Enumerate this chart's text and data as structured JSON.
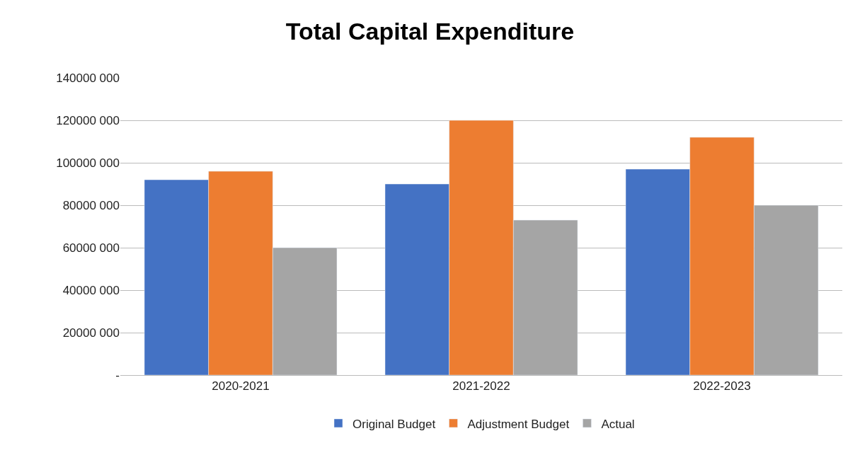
{
  "chart_data": {
    "type": "bar",
    "title": "Total Capital Expenditure",
    "categories": [
      "2020-2021",
      "2021-2022",
      "2022-2023"
    ],
    "series": [
      {
        "name": "Original Budget",
        "color": "#4472c4",
        "values": [
          92000000,
          90000000,
          97000000
        ]
      },
      {
        "name": "Adjustment Budget",
        "color": "#ed7d31",
        "values": [
          96000000,
          120000000,
          112000000
        ]
      },
      {
        "name": "Actual",
        "color": "#a5a5a5",
        "values": [
          60000000,
          73000000,
          80000000
        ]
      }
    ],
    "ylim": [
      0,
      140000000
    ],
    "yticks": [
      {
        "value": 0,
        "label": "-"
      },
      {
        "value": 20000000,
        "label": "20000 000"
      },
      {
        "value": 40000000,
        "label": "40000 000"
      },
      {
        "value": 60000000,
        "label": "60000 000"
      },
      {
        "value": 80000000,
        "label": "80000 000"
      },
      {
        "value": 100000000,
        "label": "100000 000"
      },
      {
        "value": 120000000,
        "label": "120000 000"
      },
      {
        "value": 140000000,
        "label": "140000 000"
      }
    ],
    "grid": "y",
    "legend": "bottom"
  }
}
